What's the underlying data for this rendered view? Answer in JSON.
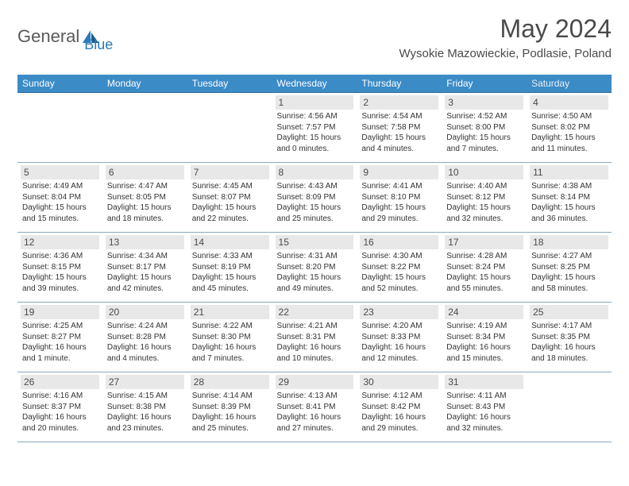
{
  "logo": {
    "part1": "General",
    "part2": "Blue"
  },
  "title": "May 2024",
  "location": "Wysokie Mazowieckie, Podlasie, Poland",
  "colors": {
    "header_bg": "#3b8bc7",
    "header_text": "#ffffff",
    "daynum_bg": "#e8e8e8",
    "row_border": "#8aa8c0",
    "logo_blue": "#2a7ab9",
    "logo_gray": "#5a5a5a"
  },
  "weekdays": [
    "Sunday",
    "Monday",
    "Tuesday",
    "Wednesday",
    "Thursday",
    "Friday",
    "Saturday"
  ],
  "first_weekday": 3,
  "days": [
    {
      "n": 1,
      "sunrise": "4:56 AM",
      "sunset": "7:57 PM",
      "daylight": "15 hours and 0 minutes."
    },
    {
      "n": 2,
      "sunrise": "4:54 AM",
      "sunset": "7:58 PM",
      "daylight": "15 hours and 4 minutes."
    },
    {
      "n": 3,
      "sunrise": "4:52 AM",
      "sunset": "8:00 PM",
      "daylight": "15 hours and 7 minutes."
    },
    {
      "n": 4,
      "sunrise": "4:50 AM",
      "sunset": "8:02 PM",
      "daylight": "15 hours and 11 minutes."
    },
    {
      "n": 5,
      "sunrise": "4:49 AM",
      "sunset": "8:04 PM",
      "daylight": "15 hours and 15 minutes."
    },
    {
      "n": 6,
      "sunrise": "4:47 AM",
      "sunset": "8:05 PM",
      "daylight": "15 hours and 18 minutes."
    },
    {
      "n": 7,
      "sunrise": "4:45 AM",
      "sunset": "8:07 PM",
      "daylight": "15 hours and 22 minutes."
    },
    {
      "n": 8,
      "sunrise": "4:43 AM",
      "sunset": "8:09 PM",
      "daylight": "15 hours and 25 minutes."
    },
    {
      "n": 9,
      "sunrise": "4:41 AM",
      "sunset": "8:10 PM",
      "daylight": "15 hours and 29 minutes."
    },
    {
      "n": 10,
      "sunrise": "4:40 AM",
      "sunset": "8:12 PM",
      "daylight": "15 hours and 32 minutes."
    },
    {
      "n": 11,
      "sunrise": "4:38 AM",
      "sunset": "8:14 PM",
      "daylight": "15 hours and 36 minutes."
    },
    {
      "n": 12,
      "sunrise": "4:36 AM",
      "sunset": "8:15 PM",
      "daylight": "15 hours and 39 minutes."
    },
    {
      "n": 13,
      "sunrise": "4:34 AM",
      "sunset": "8:17 PM",
      "daylight": "15 hours and 42 minutes."
    },
    {
      "n": 14,
      "sunrise": "4:33 AM",
      "sunset": "8:19 PM",
      "daylight": "15 hours and 45 minutes."
    },
    {
      "n": 15,
      "sunrise": "4:31 AM",
      "sunset": "8:20 PM",
      "daylight": "15 hours and 49 minutes."
    },
    {
      "n": 16,
      "sunrise": "4:30 AM",
      "sunset": "8:22 PM",
      "daylight": "15 hours and 52 minutes."
    },
    {
      "n": 17,
      "sunrise": "4:28 AM",
      "sunset": "8:24 PM",
      "daylight": "15 hours and 55 minutes."
    },
    {
      "n": 18,
      "sunrise": "4:27 AM",
      "sunset": "8:25 PM",
      "daylight": "15 hours and 58 minutes."
    },
    {
      "n": 19,
      "sunrise": "4:25 AM",
      "sunset": "8:27 PM",
      "daylight": "16 hours and 1 minute."
    },
    {
      "n": 20,
      "sunrise": "4:24 AM",
      "sunset": "8:28 PM",
      "daylight": "16 hours and 4 minutes."
    },
    {
      "n": 21,
      "sunrise": "4:22 AM",
      "sunset": "8:30 PM",
      "daylight": "16 hours and 7 minutes."
    },
    {
      "n": 22,
      "sunrise": "4:21 AM",
      "sunset": "8:31 PM",
      "daylight": "16 hours and 10 minutes."
    },
    {
      "n": 23,
      "sunrise": "4:20 AM",
      "sunset": "8:33 PM",
      "daylight": "16 hours and 12 minutes."
    },
    {
      "n": 24,
      "sunrise": "4:19 AM",
      "sunset": "8:34 PM",
      "daylight": "16 hours and 15 minutes."
    },
    {
      "n": 25,
      "sunrise": "4:17 AM",
      "sunset": "8:35 PM",
      "daylight": "16 hours and 18 minutes."
    },
    {
      "n": 26,
      "sunrise": "4:16 AM",
      "sunset": "8:37 PM",
      "daylight": "16 hours and 20 minutes."
    },
    {
      "n": 27,
      "sunrise": "4:15 AM",
      "sunset": "8:38 PM",
      "daylight": "16 hours and 23 minutes."
    },
    {
      "n": 28,
      "sunrise": "4:14 AM",
      "sunset": "8:39 PM",
      "daylight": "16 hours and 25 minutes."
    },
    {
      "n": 29,
      "sunrise": "4:13 AM",
      "sunset": "8:41 PM",
      "daylight": "16 hours and 27 minutes."
    },
    {
      "n": 30,
      "sunrise": "4:12 AM",
      "sunset": "8:42 PM",
      "daylight": "16 hours and 29 minutes."
    },
    {
      "n": 31,
      "sunrise": "4:11 AM",
      "sunset": "8:43 PM",
      "daylight": "16 hours and 32 minutes."
    }
  ],
  "labels": {
    "sunrise": "Sunrise:",
    "sunset": "Sunset:",
    "daylight": "Daylight:"
  }
}
